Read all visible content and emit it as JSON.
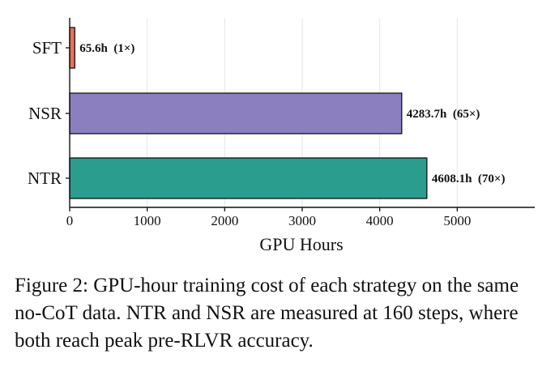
{
  "chart_data": {
    "type": "bar",
    "orientation": "horizontal",
    "categories": [
      "SFT",
      "NSR",
      "NTR"
    ],
    "values": [
      65.6,
      4283.7,
      4608.1
    ],
    "data_labels": [
      "65.6h  (1×)",
      "4283.7h  (65×)",
      "4608.1h  (70×)"
    ],
    "colors": [
      "#e8735a",
      "#8c7fc0",
      "#2a9d8f"
    ],
    "title": "",
    "xlabel": "GPU Hours",
    "ylabel": "",
    "xlim": [
      0,
      6000
    ],
    "xticks": [
      0,
      1000,
      2000,
      3000,
      4000,
      5000
    ],
    "xtick_labels": [
      "0",
      "1000",
      "2000",
      "3000",
      "4000",
      "5000"
    ],
    "grid": "vertical",
    "legend": "none"
  },
  "caption": "Figure 2: GPU-hour training cost of each strategy on the same no-CoT data. NTR and NSR are measured at 160 steps, where both reach peak pre-RLVR accuracy."
}
